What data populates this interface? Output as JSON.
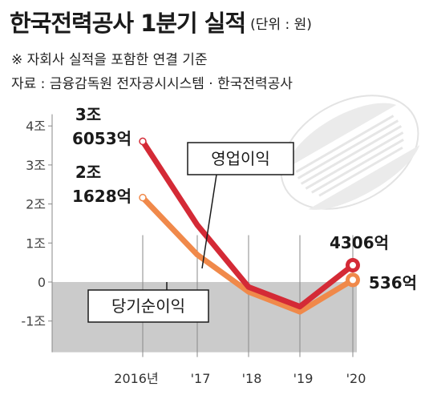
{
  "header": {
    "title": "한국전력공사 1분기 실적",
    "unit": "(단위 : 원)",
    "note": "※ 자회사 실적을 포함한 연결 기준",
    "source": "자료 : 금융감독원 전자공시시스템 · 한국전력공사"
  },
  "chart_data": {
    "type": "line",
    "categories": [
      "2016년",
      "'17",
      "'18",
      "'19",
      "'20"
    ],
    "yticks": [
      "4조",
      "3조",
      "2조",
      "1조",
      "0",
      "-1조"
    ],
    "ylim": [
      -1.8,
      4.3
    ],
    "ylabel": "",
    "xlabel": "",
    "grid": false,
    "series": [
      {
        "name": "영업이익",
        "color": "#d42a36",
        "values": [
          3.6053,
          1.4632,
          -0.1276,
          -0.6299,
          0.4306
        ],
        "first_label": [
          "3조",
          "6053억"
        ],
        "last_label": "4306억"
      },
      {
        "name": "당기순이익",
        "color": "#f0894a",
        "values": [
          2.1628,
          0.6991,
          -0.2506,
          -0.7612,
          0.0536
        ],
        "first_label": [
          "2조",
          "1628억"
        ],
        "last_label": "536억"
      }
    ],
    "negative_region_color": "#cbcbcb"
  }
}
